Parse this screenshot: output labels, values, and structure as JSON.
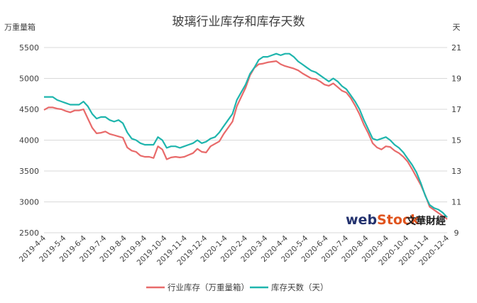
{
  "chart_data": {
    "type": "line",
    "title": "玻璃行业库存和库存天数",
    "y_left_label": "万重量箱",
    "y_right_label": "天",
    "y_left_range": [
      2500,
      5500
    ],
    "y_left_ticks": [
      "2500",
      "3000",
      "3500",
      "4000",
      "4500",
      "5000",
      "5500"
    ],
    "y_right_range": [
      9,
      21
    ],
    "y_right_ticks": [
      "9",
      "11",
      "13",
      "15",
      "17",
      "19",
      "21"
    ],
    "x_tick_labels": [
      "2019-4-4",
      "2019-5-4",
      "2019-6-4",
      "2019-7-4",
      "2019-8-4",
      "2019-9-4",
      "2019-10-4",
      "2019-11-4",
      "2019-12-4",
      "2020-1-4",
      "2020-2-4",
      "2020-3-4",
      "2020-4-4",
      "2020-5-4",
      "2020-6-4",
      "2020-7-4",
      "2020-8-4",
      "2020-9-4",
      "2020-10-4",
      "2020-11-4",
      "2020-12-4"
    ],
    "legend_position": "bottom",
    "series": [
      {
        "name": "行业库存（万重量箱）",
        "axis": "left",
        "color": "#e86a6a",
        "values": [
          4490,
          4530,
          4530,
          4510,
          4500,
          4470,
          4450,
          4480,
          4480,
          4500,
          4350,
          4200,
          4110,
          4120,
          4140,
          4100,
          4080,
          4060,
          4040,
          3880,
          3830,
          3810,
          3750,
          3730,
          3730,
          3710,
          3900,
          3850,
          3690,
          3720,
          3730,
          3720,
          3730,
          3760,
          3790,
          3860,
          3810,
          3800,
          3900,
          3940,
          3980,
          4100,
          4200,
          4300,
          4550,
          4700,
          4850,
          5050,
          5170,
          5230,
          5240,
          5260,
          5270,
          5280,
          5230,
          5200,
          5180,
          5160,
          5130,
          5080,
          5040,
          5000,
          4990,
          4950,
          4900,
          4880,
          4920,
          4860,
          4800,
          4770,
          4680,
          4560,
          4420,
          4250,
          4110,
          3950,
          3880,
          3850,
          3900,
          3890,
          3830,
          3790,
          3730,
          3650,
          3530,
          3400,
          3270,
          3110,
          2920,
          2870,
          2820,
          2770,
          2720
        ]
      },
      {
        "name": "库存天数（天）",
        "axis": "right",
        "color": "#1fb5ad",
        "values": [
          17.8,
          17.8,
          17.8,
          17.6,
          17.5,
          17.4,
          17.3,
          17.3,
          17.3,
          17.5,
          17.2,
          16.7,
          16.4,
          16.5,
          16.5,
          16.3,
          16.2,
          16.3,
          16.1,
          15.5,
          15.1,
          15.0,
          14.8,
          14.7,
          14.7,
          14.7,
          15.2,
          15.0,
          14.5,
          14.6,
          14.6,
          14.5,
          14.6,
          14.7,
          14.8,
          15.0,
          14.8,
          14.9,
          15.1,
          15.2,
          15.5,
          15.9,
          16.3,
          16.7,
          17.6,
          18.1,
          18.6,
          19.3,
          19.7,
          20.2,
          20.4,
          20.4,
          20.5,
          20.6,
          20.5,
          20.6,
          20.6,
          20.4,
          20.1,
          19.9,
          19.7,
          19.5,
          19.4,
          19.2,
          19.0,
          18.8,
          19.0,
          18.8,
          18.5,
          18.3,
          17.9,
          17.5,
          17.0,
          16.3,
          15.7,
          15.1,
          15.0,
          15.1,
          15.2,
          15.0,
          14.7,
          14.5,
          14.2,
          13.8,
          13.4,
          12.9,
          12.2,
          11.4,
          10.8,
          10.6,
          10.5,
          10.3,
          10.0
        ]
      }
    ],
    "watermark": {
      "brand": "webstock",
      "brand_web": "web",
      "brand_stock": "Stock",
      "chinese": "文華財經"
    }
  }
}
